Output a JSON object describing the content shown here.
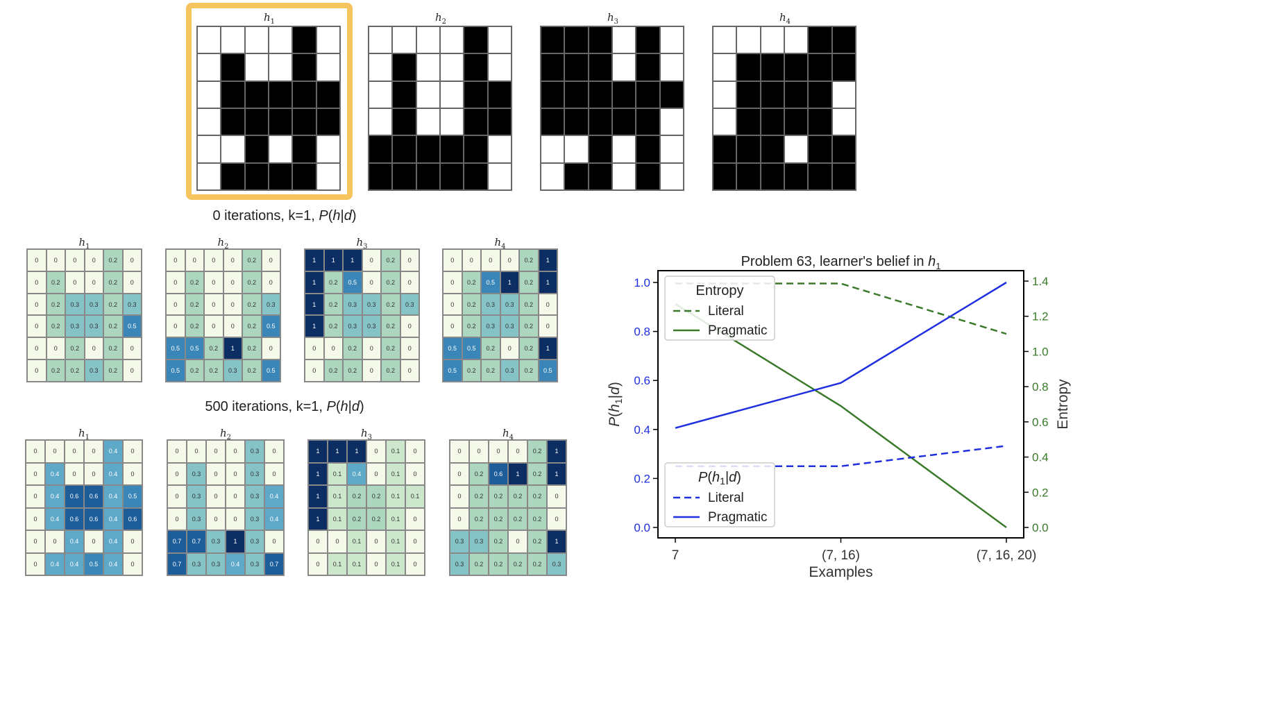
{
  "top_row": {
    "titles": [
      "h1",
      "h2",
      "h3",
      "h4"
    ],
    "highlight_color": "#F5C45E",
    "grids": [
      [
        [
          0,
          0,
          0,
          0,
          1,
          0
        ],
        [
          0,
          1,
          0,
          0,
          1,
          0
        ],
        [
          0,
          1,
          1,
          1,
          1,
          1
        ],
        [
          0,
          1,
          1,
          1,
          1,
          1
        ],
        [
          0,
          0,
          1,
          0,
          1,
          0
        ],
        [
          0,
          1,
          1,
          1,
          1,
          0
        ]
      ],
      [
        [
          0,
          0,
          0,
          0,
          1,
          0
        ],
        [
          0,
          1,
          0,
          0,
          1,
          0
        ],
        [
          0,
          1,
          0,
          0,
          1,
          1
        ],
        [
          0,
          1,
          0,
          0,
          1,
          1
        ],
        [
          1,
          1,
          1,
          1,
          1,
          0
        ],
        [
          1,
          1,
          1,
          1,
          1,
          0
        ]
      ],
      [
        [
          1,
          1,
          1,
          0,
          1,
          0
        ],
        [
          1,
          1,
          1,
          0,
          1,
          0
        ],
        [
          1,
          1,
          1,
          1,
          1,
          1
        ],
        [
          1,
          1,
          1,
          1,
          1,
          0
        ],
        [
          0,
          0,
          1,
          0,
          1,
          0
        ],
        [
          0,
          1,
          1,
          0,
          1,
          0
        ]
      ],
      [
        [
          0,
          0,
          0,
          0,
          1,
          1
        ],
        [
          0,
          1,
          1,
          1,
          1,
          1
        ],
        [
          0,
          1,
          1,
          1,
          1,
          0
        ],
        [
          0,
          1,
          1,
          1,
          1,
          0
        ],
        [
          1,
          1,
          1,
          0,
          1,
          1
        ],
        [
          1,
          1,
          1,
          1,
          1,
          1
        ]
      ]
    ]
  },
  "section0": {
    "title": "0 iterations, k=1, P(h|d)",
    "grids": [
      [
        [
          "0",
          "0",
          "0",
          "0",
          "0.2",
          "0"
        ],
        [
          "0",
          "0.2",
          "0",
          "0",
          "0.2",
          "0"
        ],
        [
          "0",
          "0.2",
          "0.3",
          "0.3",
          "0.2",
          "0.3"
        ],
        [
          "0",
          "0.2",
          "0.3",
          "0.3",
          "0.2",
          "0.5"
        ],
        [
          "0",
          "0",
          "0.2",
          "0",
          "0.2",
          "0"
        ],
        [
          "0",
          "0.2",
          "0.2",
          "0.3",
          "0.2",
          "0"
        ]
      ],
      [
        [
          "0",
          "0",
          "0",
          "0",
          "0.2",
          "0"
        ],
        [
          "0",
          "0.2",
          "0",
          "0",
          "0.2",
          "0"
        ],
        [
          "0",
          "0.2",
          "0",
          "0",
          "0.2",
          "0.3"
        ],
        [
          "0",
          "0.2",
          "0",
          "0",
          "0.2",
          "0.5"
        ],
        [
          "0.5",
          "0.5",
          "0.2",
          "1",
          "0.2",
          "0"
        ],
        [
          "0.5",
          "0.2",
          "0.2",
          "0.3",
          "0.2",
          "0.5"
        ]
      ],
      [
        [
          "1",
          "1",
          "1",
          "0",
          "0.2",
          "0"
        ],
        [
          "1",
          "0.2",
          "0.5",
          "0",
          "0.2",
          "0"
        ],
        [
          "1",
          "0.2",
          "0.3",
          "0.3",
          "0.2",
          "0.3"
        ],
        [
          "1",
          "0.2",
          "0.3",
          "0.3",
          "0.2",
          "0"
        ],
        [
          "0",
          "0",
          "0.2",
          "0",
          "0.2",
          "0"
        ],
        [
          "0",
          "0.2",
          "0.2",
          "0",
          "0.2",
          "0"
        ]
      ],
      [
        [
          "0",
          "0",
          "0",
          "0",
          "0.2",
          "1"
        ],
        [
          "0",
          "0.2",
          "0.5",
          "1",
          "0.2",
          "1"
        ],
        [
          "0",
          "0.2",
          "0.3",
          "0.3",
          "0.2",
          "0"
        ],
        [
          "0",
          "0.2",
          "0.3",
          "0.3",
          "0.2",
          "0"
        ],
        [
          "0.5",
          "0.5",
          "0.2",
          "0",
          "0.2",
          "1"
        ],
        [
          "0.5",
          "0.2",
          "0.2",
          "0.3",
          "0.2",
          "0.5"
        ]
      ]
    ]
  },
  "section500": {
    "title": "500 iterations, k=1, P(h|d)",
    "grids": [
      [
        [
          "0",
          "0",
          "0",
          "0",
          "0.4",
          "0"
        ],
        [
          "0",
          "0.4",
          "0",
          "0",
          "0.4",
          "0"
        ],
        [
          "0",
          "0.4",
          "0.6",
          "0.6",
          "0.4",
          "0.5"
        ],
        [
          "0",
          "0.4",
          "0.6",
          "0.6",
          "0.4",
          "0.6"
        ],
        [
          "0",
          "0",
          "0.4",
          "0",
          "0.4",
          "0"
        ],
        [
          "0",
          "0.4",
          "0.4",
          "0.5",
          "0.4",
          "0"
        ]
      ],
      [
        [
          "0",
          "0",
          "0",
          "0",
          "0.3",
          "0"
        ],
        [
          "0",
          "0.3",
          "0",
          "0",
          "0.3",
          "0"
        ],
        [
          "0",
          "0.3",
          "0",
          "0",
          "0.3",
          "0.4"
        ],
        [
          "0",
          "0.3",
          "0",
          "0",
          "0.3",
          "0.4"
        ],
        [
          "0.7",
          "0.7",
          "0.3",
          "1",
          "0.3",
          "0"
        ],
        [
          "0.7",
          "0.3",
          "0.3",
          "0.4",
          "0.3",
          "0.7"
        ]
      ],
      [
        [
          "1",
          "1",
          "1",
          "0",
          "0.1",
          "0"
        ],
        [
          "1",
          "0.1",
          "0.4",
          "0",
          "0.1",
          "0"
        ],
        [
          "1",
          "0.1",
          "0.2",
          "0.2",
          "0.1",
          "0.1"
        ],
        [
          "1",
          "0.1",
          "0.2",
          "0.2",
          "0.1",
          "0"
        ],
        [
          "0",
          "0",
          "0.1",
          "0",
          "0.1",
          "0"
        ],
        [
          "0",
          "0.1",
          "0.1",
          "0",
          "0.1",
          "0"
        ]
      ],
      [
        [
          "0",
          "0",
          "0",
          "0",
          "0.2",
          "1"
        ],
        [
          "0",
          "0.2",
          "0.6",
          "1",
          "0.2",
          "1"
        ],
        [
          "0",
          "0.2",
          "0.2",
          "0.2",
          "0.2",
          "0"
        ],
        [
          "0",
          "0.2",
          "0.2",
          "0.2",
          "0.2",
          "0"
        ],
        [
          "0.3",
          "0.3",
          "0.2",
          "0",
          "0.2",
          "1"
        ],
        [
          "0.3",
          "0.2",
          "0.2",
          "0.2",
          "0.2",
          "0.3"
        ]
      ]
    ]
  },
  "chart_data": {
    "type": "line",
    "title": "Problem 63, learner's belief in h1",
    "xlabel": "Examples",
    "ylabel_left": "P(h1|d)",
    "ylabel_right": "Entropy",
    "categories": [
      "7",
      "(7, 16)",
      "(7, 16, 20)"
    ],
    "ylim_left": [
      0,
      1.0
    ],
    "ylim_right": [
      0,
      1.4
    ],
    "left_ticks": [
      "0.0",
      "0.2",
      "0.4",
      "0.6",
      "0.8",
      "1.0"
    ],
    "right_ticks": [
      "0.0",
      "0.2",
      "0.4",
      "0.6",
      "0.8",
      "1.0",
      "1.2",
      "1.4"
    ],
    "entropy_legend_title": "Entropy",
    "prob_legend_title": "P(h1|d)",
    "series": [
      {
        "name": "Literal",
        "axis": "right",
        "group": "entropy",
        "style": "dashed",
        "color": "#3a7a2a",
        "values": [
          1.386,
          1.386,
          1.1
        ]
      },
      {
        "name": "Pragmatic",
        "axis": "right",
        "group": "entropy",
        "style": "solid",
        "color": "#3a7a2a",
        "values": [
          1.27,
          0.69,
          0.0
        ]
      },
      {
        "name": "Literal",
        "axis": "left",
        "group": "prob",
        "style": "dashed",
        "color": "#1f2fe0",
        "values": [
          0.25,
          0.25,
          0.333
        ]
      },
      {
        "name": "Pragmatic",
        "axis": "left",
        "group": "prob",
        "style": "solid",
        "color": "#1f2fe0",
        "values": [
          0.406,
          0.59,
          1.0
        ]
      }
    ]
  }
}
